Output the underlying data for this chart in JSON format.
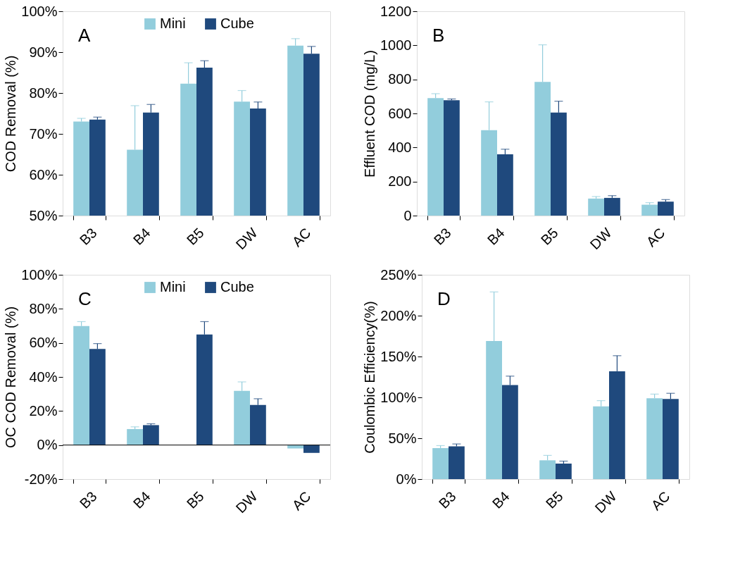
{
  "chart_data": [
    {
      "type": "bar",
      "ylabel": "COD Removal (%)",
      "categories": [
        "B3",
        "B4",
        "B5",
        "DW",
        "AC"
      ],
      "ylim": [
        50,
        100
      ],
      "yticks": [
        {
          "value": 50,
          "label": "50%"
        },
        {
          "value": 60,
          "label": "60%"
        },
        {
          "value": 70,
          "label": "70%"
        },
        {
          "value": 80,
          "label": "80%"
        },
        {
          "value": 90,
          "label": "90%"
        },
        {
          "value": 100,
          "label": "100%"
        }
      ],
      "grid": false,
      "legend": "top",
      "annotations": [
        "A"
      ],
      "series": [
        {
          "name": "Mini",
          "color": "#92cddc",
          "values": [
            73.0,
            66.1,
            82.3,
            77.9,
            91.6
          ],
          "errors": [
            [
              73.0,
              73.8
            ],
            [
              66.1,
              76.9
            ],
            [
              82.3,
              87.4
            ],
            [
              77.9,
              80.6
            ],
            [
              91.6,
              93.3
            ]
          ]
        },
        {
          "name": "Cube",
          "color": "#1f497d",
          "values": [
            73.5,
            75.2,
            86.2,
            76.2,
            89.6
          ],
          "errors": [
            [
              73.5,
              74.1
            ],
            [
              75.2,
              77.2
            ],
            [
              86.2,
              87.9
            ],
            [
              76.2,
              77.8
            ],
            [
              89.6,
              91.4
            ]
          ]
        }
      ]
    },
    {
      "type": "bar",
      "ylabel": "Effluent COD (mg/L)",
      "categories": [
        "B3",
        "B4",
        "B5",
        "DW",
        "AC"
      ],
      "ylim": [
        0,
        1200
      ],
      "yticks": [
        0,
        200,
        400,
        600,
        800,
        1000,
        1200
      ],
      "grid": false,
      "annotations": [
        "B"
      ],
      "series": [
        {
          "color": "#92cddc",
          "values": [
            690,
            502,
            785,
            100,
            64
          ],
          "errors": [
            [
              690,
              716
            ],
            [
              502,
              668
            ],
            [
              785,
              1003
            ],
            [
              100,
              112
            ],
            [
              64,
              76
            ]
          ]
        },
        {
          "color": "#1f497d",
          "values": [
            678,
            360,
            605,
            104,
            82
          ],
          "errors": [
            [
              678,
              685
            ],
            [
              360,
              390
            ],
            [
              605,
              672
            ],
            [
              104,
              117
            ],
            [
              82,
              94
            ]
          ]
        }
      ]
    },
    {
      "type": "bar",
      "ylabel": "OC COD Removal (%)",
      "categories": [
        "B3",
        "B4",
        "B5",
        "DW",
        "AC"
      ],
      "ylim": [
        -20,
        100
      ],
      "yticks": [
        {
          "value": -20,
          "label": "-20%"
        },
        {
          "value": 0,
          "label": "0%"
        },
        {
          "value": 20,
          "label": "20%"
        },
        {
          "value": 40,
          "label": "40%"
        },
        {
          "value": 60,
          "label": "60%"
        },
        {
          "value": 80,
          "label": "80%"
        },
        {
          "value": 100,
          "label": "100%"
        }
      ],
      "grid": false,
      "legend": "top",
      "annotations": [
        "C"
      ],
      "ref_lines": [
        {
          "axis": "y",
          "value": 0,
          "color": "#000000"
        }
      ],
      "series": [
        {
          "name": "Mini",
          "color": "#92cddc",
          "values": [
            69.9,
            9.4,
            null,
            31.8,
            -2.0
          ],
          "errors": [
            [
              69.9,
              72.5
            ],
            [
              9.4,
              10.7
            ],
            null,
            [
              31.8,
              37.1
            ],
            null
          ]
        },
        {
          "name": "Cube",
          "color": "#1f497d",
          "values": [
            56.4,
            11.7,
            64.9,
            23.6,
            -4.6
          ],
          "errors": [
            [
              56.4,
              59.6
            ],
            [
              11.7,
              12.5
            ],
            [
              64.9,
              72.5
            ],
            [
              23.6,
              27.2
            ],
            null
          ]
        }
      ]
    },
    {
      "type": "bar",
      "ylabel": "Coulombic Efficiency(%)",
      "categories": [
        "B3",
        "B4",
        "B5",
        "DW",
        "AC"
      ],
      "ylim": [
        0,
        250
      ],
      "yticks": [
        {
          "value": 0,
          "label": "0%"
        },
        {
          "value": 50,
          "label": "50%"
        },
        {
          "value": 100,
          "label": "100%"
        },
        {
          "value": 150,
          "label": "150%"
        },
        {
          "value": 200,
          "label": "200%"
        },
        {
          "value": 250,
          "label": "250%"
        }
      ],
      "grid": false,
      "annotations": [
        "D"
      ],
      "series": [
        {
          "color": "#92cddc",
          "values": [
            38,
            169,
            23,
            89,
            99
          ],
          "errors": [
            [
              38,
              41
            ],
            [
              169,
              229
            ],
            [
              23,
              29
            ],
            [
              89,
              96
            ],
            [
              99,
              104
            ]
          ]
        },
        {
          "color": "#1f497d",
          "values": [
            40,
            115,
            19,
            132,
            98
          ],
          "errors": [
            [
              40,
              43
            ],
            [
              115,
              126
            ],
            [
              19,
              22
            ],
            [
              132,
              151
            ],
            [
              98,
              105
            ]
          ]
        }
      ]
    }
  ]
}
